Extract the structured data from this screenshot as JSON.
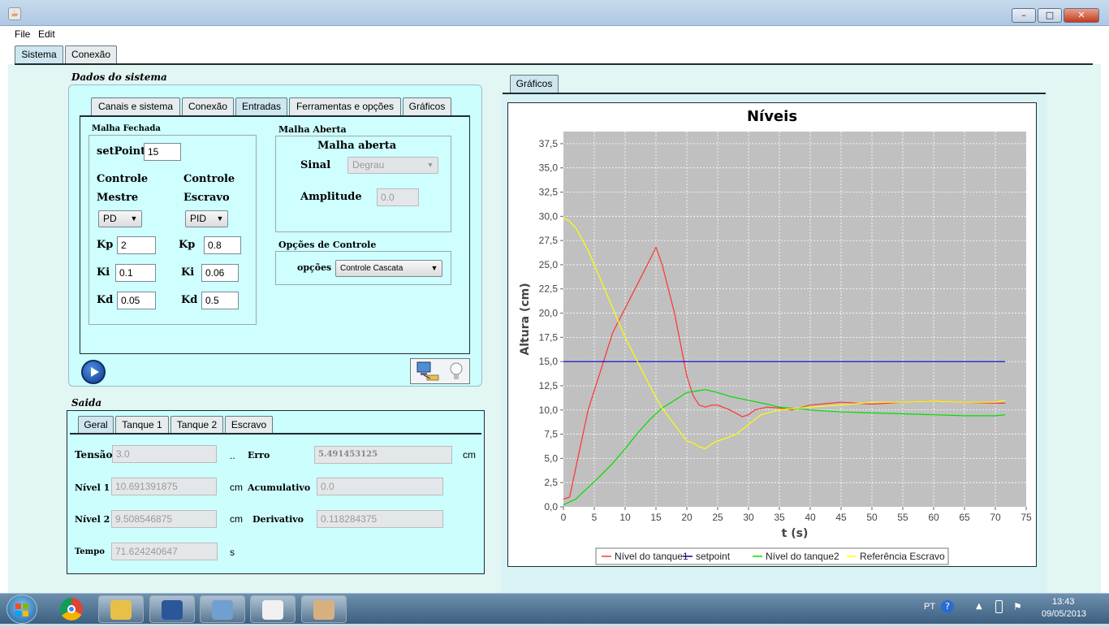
{
  "window": {
    "minimize": "–",
    "maximize": "□",
    "close": "✕"
  },
  "menu": [
    "File",
    "Edit"
  ],
  "top_tabs": [
    "Sistema",
    "Conexão"
  ],
  "dados": {
    "title": "Dados do sistema",
    "tabs": [
      "Canais e sistema",
      "Conexão",
      "Entradas",
      "Ferramentas e opções",
      "Gráficos"
    ],
    "malha_fechada": {
      "title": "Malha Fechada",
      "setpoint_label": "setPoint",
      "setpoint": "15",
      "mestre_label1": "Controle",
      "mestre_label2": "Mestre",
      "escravo_label1": "Controle",
      "escravo_label2": "Escravo",
      "mestre_type": "PD",
      "escravo_type": "PID",
      "kp_label": "Kp",
      "ki_label": "Ki",
      "kd_label": "Kd",
      "kp1": "2",
      "ki1": "0.1",
      "kd1": "0.05",
      "kp2": "0.8",
      "ki2": "0.06",
      "kd2": "0.5"
    },
    "malha_aberta": {
      "title": "Malha Aberta",
      "subtitle": "Malha aberta",
      "sinal_label": "Sinal",
      "sinal": "Degrau",
      "amplitude_label": "Amplitude",
      "amplitude": "0.0"
    },
    "opcoes": {
      "title": "Opções de Controle",
      "label": "opções",
      "value": "Controle Cascata"
    }
  },
  "saida": {
    "title": "Saida",
    "tabs": [
      "Geral",
      "Tanque 1",
      "Tanque 2",
      "Escravo"
    ],
    "tensao_label": "Tensão",
    "tensao": "3.0",
    "tensao_unit": "..",
    "erro_label": "Erro",
    "erro": "5.491453125",
    "erro_unit": "cm",
    "nivel1_label": "Nível 1",
    "nivel1": "10.691391875",
    "nivel1_unit": "cm",
    "acum_label": "Acumulativo",
    "acum": "0.0",
    "nivel2_label": "Nível 2",
    "nivel2": "9.508546875",
    "nivel2_unit": "cm",
    "deriv_label": "Derivativo",
    "deriv": "0.118284375",
    "tempo_label": "Tempo",
    "tempo": "71.624240647",
    "tempo_unit": "s"
  },
  "graficos_tab": "Gráficos",
  "chart_data": {
    "type": "line",
    "title": "Níveis",
    "xlabel": "t (s)",
    "ylabel": "Altura (cm)",
    "xlim": [
      0,
      75
    ],
    "ylim": [
      0,
      38.75
    ],
    "xticks": [
      0,
      5,
      10,
      15,
      20,
      25,
      30,
      35,
      40,
      45,
      50,
      55,
      60,
      65,
      70,
      75
    ],
    "yticks": [
      "0,0",
      "2,5",
      "5,0",
      "7,5",
      "10,0",
      "12,5",
      "15,0",
      "17,5",
      "20,0",
      "22,5",
      "25,0",
      "27,5",
      "30,0",
      "32,5",
      "35,0",
      "37,5"
    ],
    "grid": true,
    "legend": "bottom",
    "series": [
      {
        "name": "Nível do tanque1",
        "color": "#ff3333",
        "x": [
          0,
          1,
          2,
          4,
          6,
          8,
          10,
          12,
          14,
          15,
          16,
          18,
          20,
          21,
          22,
          23,
          24,
          25,
          27,
          29,
          30,
          31,
          33,
          35,
          37,
          40,
          45,
          50,
          55,
          60,
          65,
          70,
          71.6
        ],
        "y": [
          0.8,
          1,
          4,
          10,
          14,
          18,
          20.5,
          23,
          25.5,
          26.8,
          25,
          20,
          13.5,
          11.5,
          10.5,
          10.3,
          10.5,
          10.5,
          10,
          9.3,
          9.5,
          10,
          10.3,
          10.2,
          10,
          10.5,
          10.8,
          10.6,
          10.8,
          10.9,
          10.8,
          10.7,
          10.7
        ]
      },
      {
        "name": "setpoint",
        "color": "#0000cc",
        "x": [
          0,
          71.6
        ],
        "y": [
          15,
          15
        ]
      },
      {
        "name": "Nível do tanque2",
        "color": "#00dd00",
        "x": [
          0,
          2,
          4,
          6,
          8,
          10,
          12,
          14,
          16,
          18,
          20,
          22,
          23,
          25,
          27,
          30,
          33,
          35,
          40,
          45,
          50,
          55,
          60,
          65,
          70,
          71.6
        ],
        "y": [
          0.2,
          0.8,
          2,
          3.2,
          4.5,
          6,
          7.6,
          9,
          10.2,
          11,
          11.8,
          12,
          12.1,
          11.8,
          11.4,
          11,
          10.6,
          10.3,
          10,
          9.8,
          9.7,
          9.6,
          9.5,
          9.4,
          9.4,
          9.5
        ]
      },
      {
        "name": "Referência Escravo",
        "color": "#ffff00",
        "x": [
          0,
          1,
          2,
          4,
          6,
          8,
          10,
          12,
          14,
          15,
          16,
          18,
          20,
          21,
          22,
          23,
          24,
          25,
          26,
          28,
          30,
          32,
          35,
          40,
          45,
          50,
          55,
          60,
          65,
          70,
          71.6
        ],
        "y": [
          29.8,
          29.5,
          28.8,
          26.5,
          23.5,
          20.5,
          17.5,
          15,
          12.5,
          11.3,
          10.2,
          8.5,
          6.8,
          6.6,
          6.2,
          6,
          6.5,
          6.8,
          7,
          7.5,
          8.5,
          9.5,
          10,
          10.3,
          10.5,
          10.8,
          10.8,
          10.9,
          10.8,
          10.8,
          11
        ]
      }
    ]
  }
}
